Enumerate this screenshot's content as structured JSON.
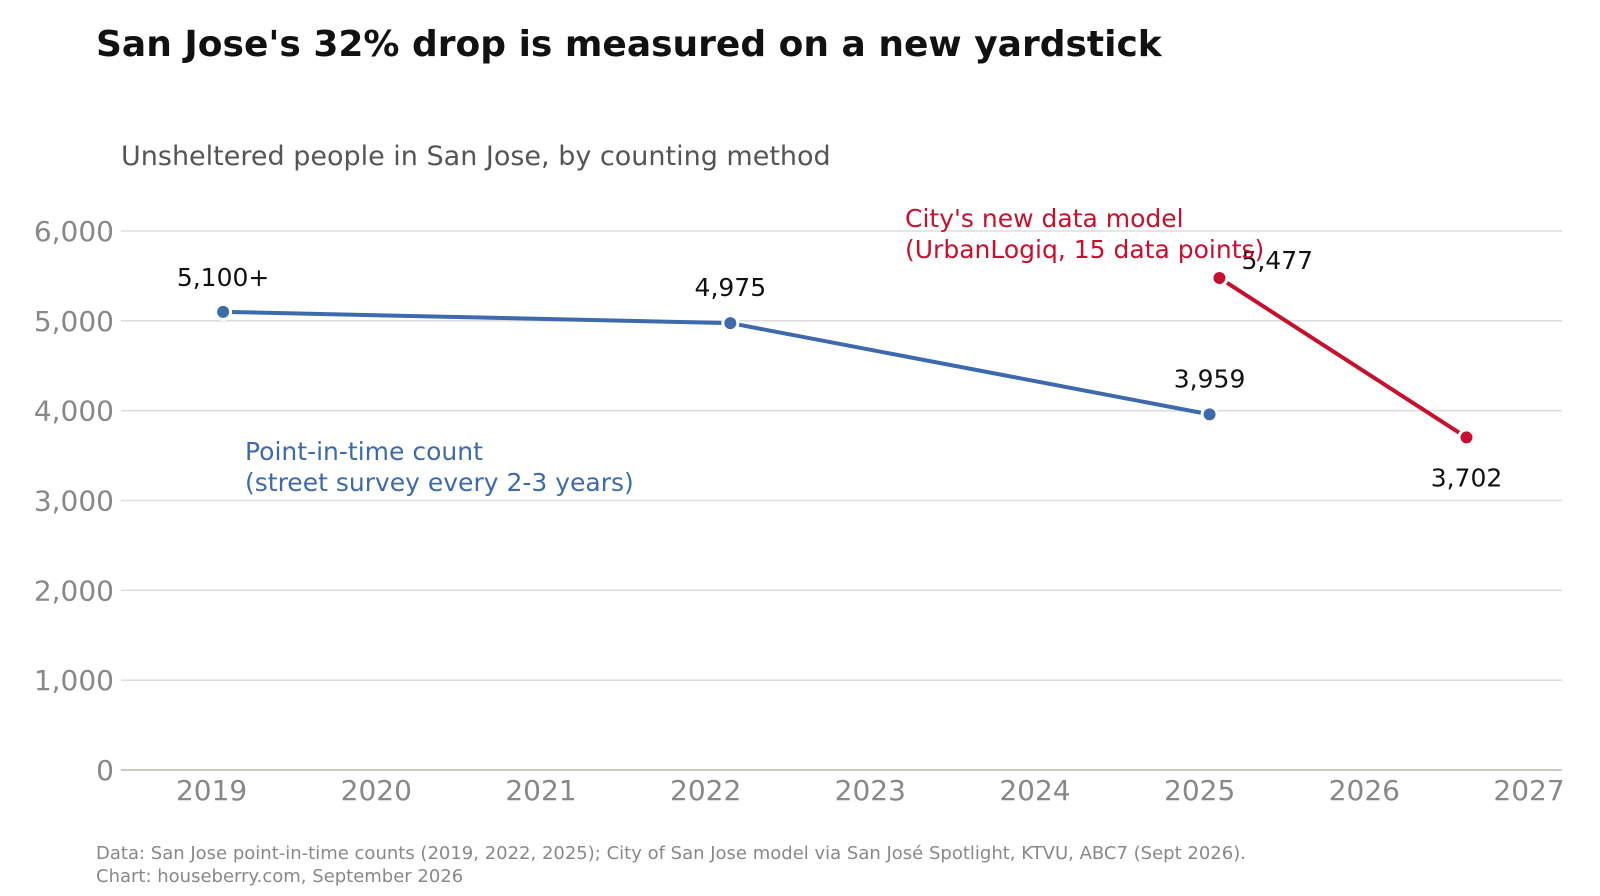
{
  "title": "San Jose's 32% drop is measured on a new yardstick",
  "subtitle": "Unsheltered people in San Jose, by counting method",
  "source_lines": [
    "Data: San Jose point-in-time counts (2019, 2022, 2025); City of San Jose model via San José Spotlight, KTVU, ABC7 (Sept 2026).",
    "Chart: houseberry.com, September 2026"
  ],
  "colors": {
    "pit": "#3d6aad",
    "model": "#c8102e"
  },
  "chart_data": {
    "type": "line",
    "title": "San Jose's 32% drop is measured on a new yardstick",
    "subtitle": "Unsheltered people in San Jose, by counting method",
    "xlabel": "",
    "ylabel": "",
    "xlim": [
      2018.45,
      2027.2
    ],
    "ylim": [
      0,
      6000
    ],
    "xticks": [
      2019,
      2020,
      2021,
      2022,
      2023,
      2024,
      2025,
      2026,
      2027
    ],
    "yticks": [
      0,
      1000,
      2000,
      3000,
      4000,
      5000,
      6000
    ],
    "ytick_labels": [
      "0",
      "1,000",
      "2,000",
      "3,000",
      "4,000",
      "5,000",
      "6,000"
    ],
    "grid": "horizontal",
    "series": [
      {
        "label_lines": [
          "Point-in-time count",
          "(street survey every 2-3 years)"
        ],
        "color": "#3d6aad",
        "points": [
          {
            "x": 2019.07,
            "y": 5100,
            "label": "5,100+"
          },
          {
            "x": 2022.15,
            "y": 4975,
            "label": "4,975"
          },
          {
            "x": 2025.06,
            "y": 3959,
            "label": "3,959"
          }
        ]
      },
      {
        "label_lines": [
          "City's new data model",
          "(UrbanLogiq, 15 data points)"
        ],
        "color": "#c8102e",
        "points": [
          {
            "x": 2025.12,
            "y": 5477,
            "label": "5,477"
          },
          {
            "x": 2026.62,
            "y": 3702,
            "label": "3,702"
          }
        ]
      }
    ]
  }
}
